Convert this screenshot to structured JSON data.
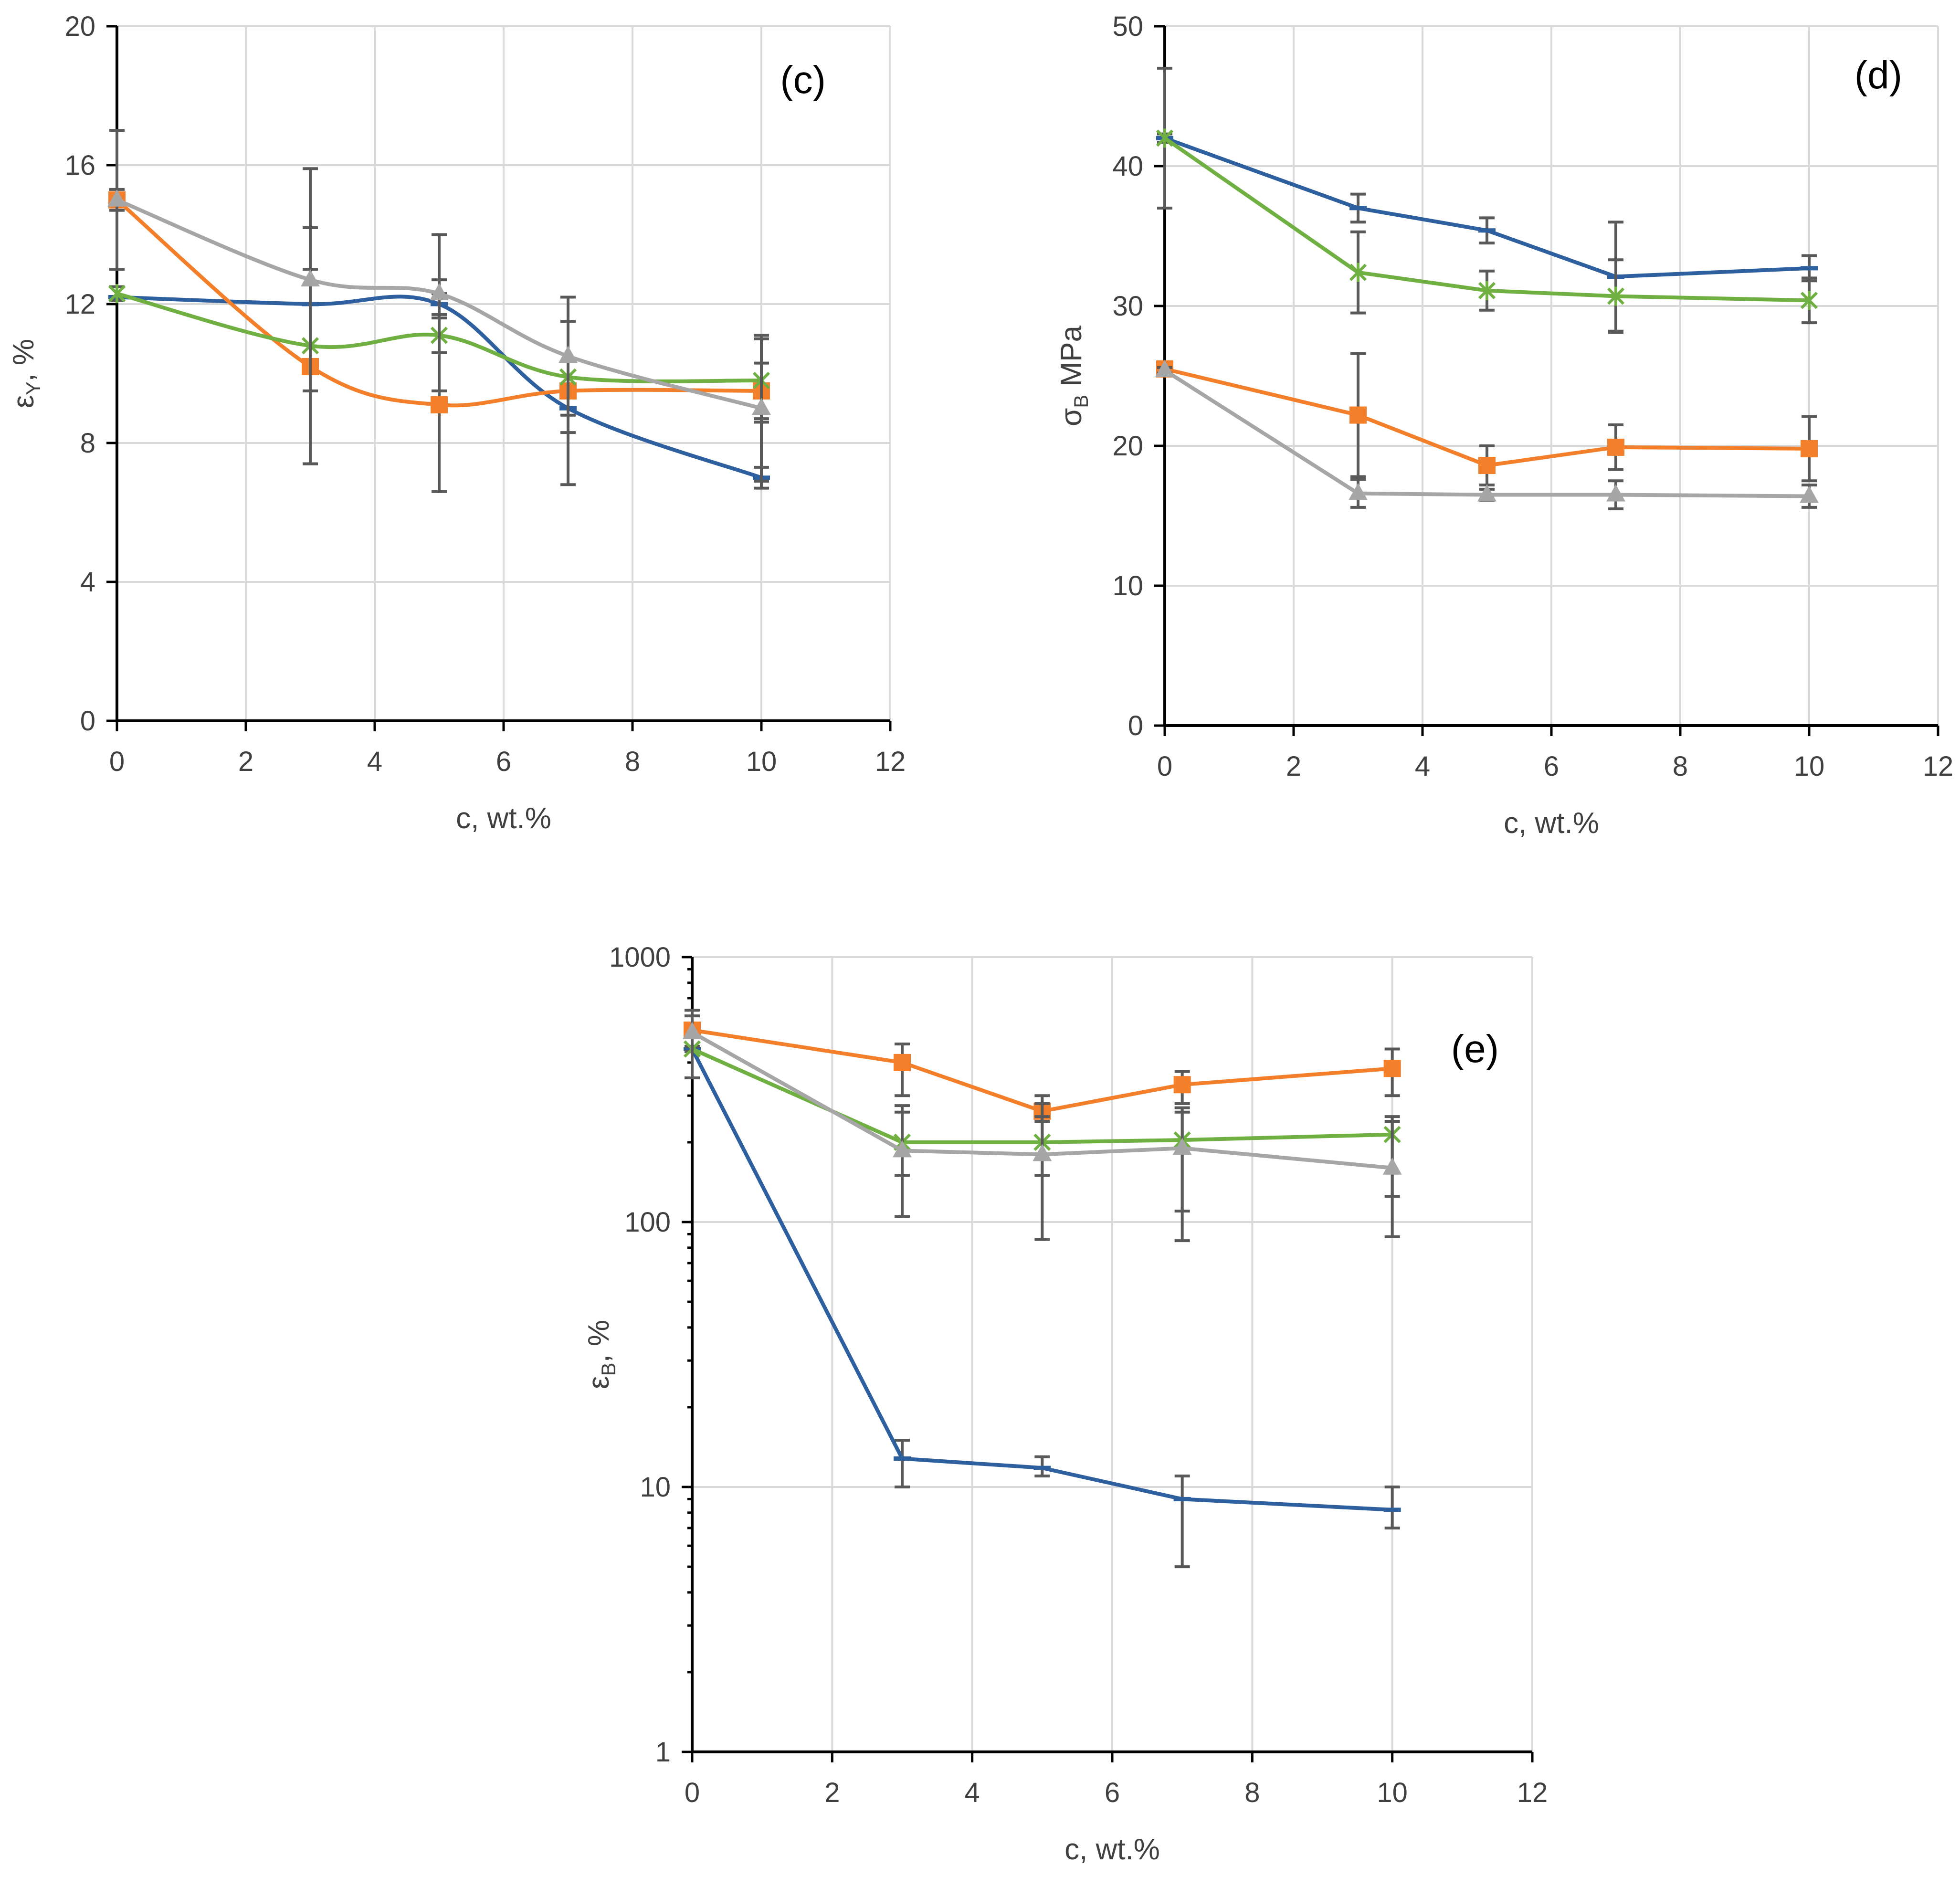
{
  "colors": {
    "blue": "#2e5f9e",
    "orange": "#f47f2a",
    "green": "#70b043",
    "gray": "#a6a6a6",
    "error_bar": "#595959"
  },
  "chart_data": [
    {
      "id": "c",
      "type": "line",
      "panel_label": "(c)",
      "xlabel": "c, wt.%",
      "ylabel": {
        "main": "ε",
        "sub": "Y",
        "rest": ", %"
      },
      "xlim": [
        0,
        12
      ],
      "ylim": [
        0,
        20
      ],
      "xticks": [
        0,
        2,
        4,
        6,
        8,
        10,
        12
      ],
      "yticks": [
        0,
        4,
        8,
        12,
        16,
        20
      ],
      "ytick_labels": [
        "0",
        "4",
        "8",
        "12",
        "16",
        "20"
      ],
      "log_y": false,
      "grid": true,
      "smooth": true,
      "series": [
        {
          "color": "#2e5f9e",
          "marker": "dash",
          "x": [
            0,
            3,
            5,
            7,
            10
          ],
          "y": [
            12.2,
            12.0,
            12.0,
            9.0,
            7.0
          ],
          "err": [
            0,
            0,
            0.3,
            0,
            0.3
          ]
        },
        {
          "color": "#f47f2a",
          "marker": "square",
          "x": [
            0,
            3,
            5,
            7,
            10
          ],
          "y": [
            15.0,
            10.2,
            9.1,
            9.5,
            9.5
          ],
          "err": [
            0.3,
            2.8,
            2.5,
            2.7,
            0.8
          ]
        },
        {
          "color": "#70b043",
          "marker": "star",
          "x": [
            0,
            3,
            5,
            7,
            10
          ],
          "y": [
            12.3,
            10.8,
            11.1,
            9.9,
            9.8
          ],
          "err": [
            0.2,
            3.4,
            1.6,
            1.6,
            1.2
          ]
        },
        {
          "color": "#a6a6a6",
          "marker": "triangle",
          "x": [
            0,
            3,
            5,
            7,
            10
          ],
          "y": [
            15.0,
            12.7,
            12.3,
            10.5,
            9.0
          ],
          "err": [
            2.0,
            3.2,
            1.7,
            1.7,
            2.1
          ]
        }
      ]
    },
    {
      "id": "d",
      "type": "line",
      "panel_label": "(d)",
      "xlabel": "c, wt.%",
      "ylabel": {
        "main": "σ",
        "sub": "B",
        "rest": " MPa"
      },
      "xlim": [
        0,
        12
      ],
      "ylim": [
        0,
        50
      ],
      "xticks": [
        0,
        2,
        4,
        6,
        8,
        10,
        12
      ],
      "yticks": [
        0,
        10,
        20,
        30,
        40,
        50
      ],
      "ytick_labels": [
        "0",
        "10",
        "20",
        "30",
        "40",
        "50"
      ],
      "log_y": false,
      "grid": true,
      "smooth": false,
      "series": [
        {
          "color": "#2e5f9e",
          "marker": "dash",
          "x": [
            0,
            3,
            5,
            7,
            10
          ],
          "y": [
            42.0,
            37.0,
            35.4,
            32.1,
            32.7
          ],
          "err": [
            5.0,
            1.0,
            0.9,
            3.9,
            0.9
          ]
        },
        {
          "color": "#70b043",
          "marker": "star",
          "x": [
            0,
            3,
            5,
            7,
            10
          ],
          "y": [
            42.0,
            32.4,
            31.1,
            30.7,
            30.4
          ],
          "err": [
            0.3,
            2.9,
            1.4,
            2.6,
            1.6
          ]
        },
        {
          "color": "#f47f2a",
          "marker": "square",
          "x": [
            0,
            3,
            5,
            7,
            10
          ],
          "y": [
            25.5,
            22.2,
            18.6,
            19.9,
            19.8
          ],
          "err": [
            0.3,
            4.4,
            1.4,
            1.6,
            2.3
          ]
        },
        {
          "color": "#a6a6a6",
          "marker": "triangle",
          "x": [
            0,
            3,
            5,
            7,
            10
          ],
          "y": [
            25.4,
            16.6,
            16.5,
            16.5,
            16.4
          ],
          "err": [
            0.2,
            1.0,
            0.4,
            1.0,
            0.8
          ]
        }
      ]
    },
    {
      "id": "e",
      "type": "line",
      "panel_label": "(e)",
      "xlabel": "c, wt.%",
      "ylabel": {
        "main": "ε",
        "sub": "B",
        "rest": ", %"
      },
      "xlim": [
        0,
        12
      ],
      "ylim": [
        1,
        1000
      ],
      "xticks": [
        0,
        2,
        4,
        6,
        8,
        10,
        12
      ],
      "yticks": [
        1,
        10,
        100,
        1000
      ],
      "ytick_labels": [
        "1",
        "10",
        "100",
        "1000"
      ],
      "log_y": true,
      "grid": true,
      "smooth": false,
      "series": [
        {
          "color": "#2e5f9e",
          "marker": "dash",
          "x": [
            0,
            3,
            5,
            7,
            10
          ],
          "y": [
            450,
            12.8,
            11.8,
            9.0,
            8.2
          ],
          "err_lo": [
            450,
            10.0,
            11.0,
            5.0,
            7.0
          ],
          "err_hi": [
            450,
            15.0,
            13.0,
            11.0,
            10.0
          ]
        },
        {
          "color": "#f47f2a",
          "marker": "square",
          "x": [
            0,
            3,
            5,
            7,
            10
          ],
          "y": [
            530,
            400,
            262,
            330,
            380
          ],
          "err_lo": [
            460,
            300,
            240,
            280,
            300
          ],
          "err_hi": [
            600,
            470,
            300,
            370,
            450
          ]
        },
        {
          "color": "#70b043",
          "marker": "star",
          "x": [
            0,
            3,
            5,
            7,
            10
          ],
          "y": [
            450,
            200,
            200,
            204,
            214
          ],
          "err_lo": [
            440,
            150,
            150,
            110,
            125
          ],
          "err_hi": [
            460,
            260,
            250,
            260,
            250
          ]
        },
        {
          "color": "#a6a6a6",
          "marker": "triangle",
          "x": [
            0,
            3,
            5,
            7,
            10
          ],
          "y": [
            520,
            186,
            180,
            190,
            160
          ],
          "err_lo": [
            350,
            105,
            86,
            85,
            88
          ],
          "err_hi": [
            630,
            275,
            280,
            270,
            240
          ]
        }
      ]
    }
  ]
}
